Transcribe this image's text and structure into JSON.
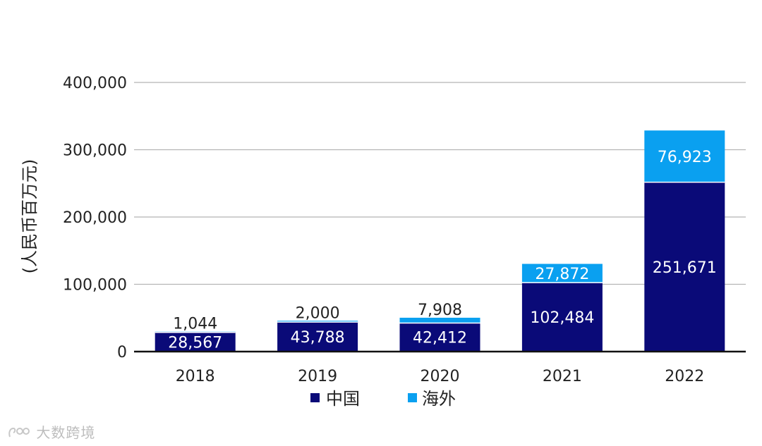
{
  "chart_data": {
    "type": "bar",
    "stacked": true,
    "categories": [
      "2018",
      "2019",
      "2020",
      "2021",
      "2022"
    ],
    "series": [
      {
        "name": "中国",
        "values": [
          28567,
          43788,
          42412,
          102484,
          251671
        ],
        "labels": [
          "28,567",
          "43,788",
          "42,412",
          "102,484",
          "251,671"
        ],
        "color": "#0a0a78"
      },
      {
        "name": "海外",
        "values": [
          1044,
          2000,
          7908,
          27872,
          76923
        ],
        "labels": [
          "1,044",
          "2,000",
          "7,908",
          "27,872",
          "76,923"
        ],
        "color": "#0aa0f0"
      }
    ],
    "ylabel": "(人民币百万元)",
    "ylim": [
      0,
      400000
    ],
    "yticks": [
      0,
      100000,
      200000,
      300000,
      400000
    ],
    "ytick_labels": [
      "0",
      "100,000",
      "200,000",
      "300,000",
      "400,000"
    ],
    "grid": true,
    "legend": "bottom"
  },
  "watermark": "大数跨境"
}
